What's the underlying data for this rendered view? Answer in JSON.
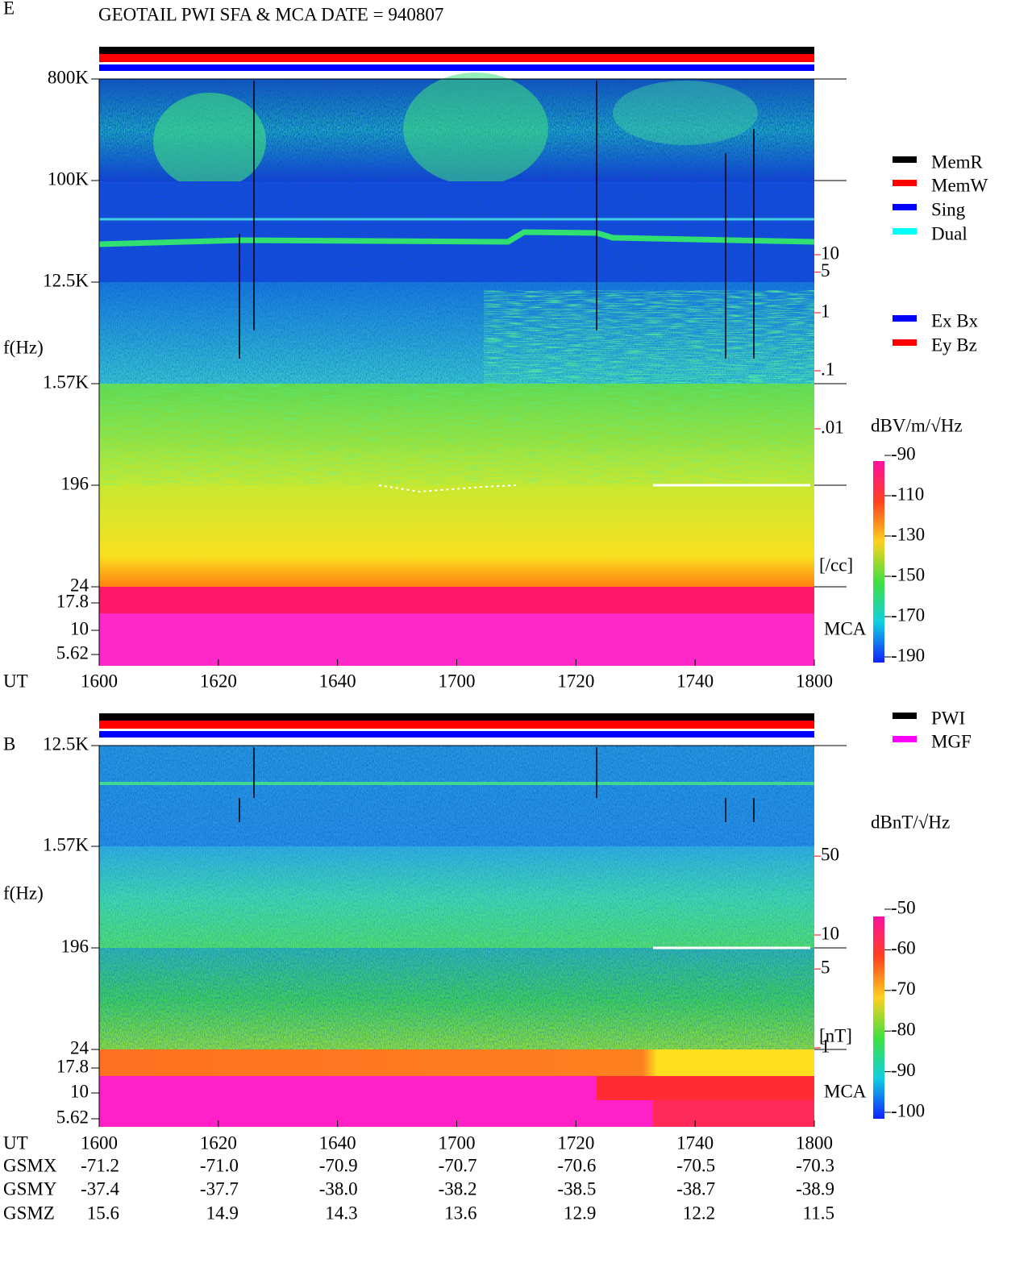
{
  "header": {
    "title": "GEOTAIL  PWI SFA & MCA   DATE = 940807"
  },
  "panels": [
    {
      "label": "E",
      "ylabel": "f(Hz)",
      "freq_ticks": [
        {
          "value": 800000,
          "label": "800K"
        },
        {
          "value": 100000,
          "label": "100K"
        },
        {
          "value": 12500,
          "label": "12.5K"
        },
        {
          "value": 1570,
          "label": "1.57K"
        },
        196,
        24,
        17.8,
        10,
        5.62
      ],
      "legend": [
        {
          "name": "MemR",
          "color": "#000000"
        },
        {
          "name": "MemW",
          "color": "#ff0000"
        },
        {
          "name": "Sing",
          "color": "#0000ff"
        },
        {
          "name": "Dual",
          "color": "#00ffff"
        }
      ],
      "legend2": [
        {
          "name": "Ex Bx",
          "color": "#0000ff"
        },
        {
          "name": "Ey Bz",
          "color": "#ff0000"
        }
      ],
      "scale": {
        "unit": "[/cc]",
        "ticks": [
          10,
          5,
          1,
          {
            "value": 0.1,
            "label": ".1"
          },
          {
            "value": 0.01,
            "label": ".01"
          }
        ]
      },
      "mca_label": "MCA",
      "colorbar": {
        "unit": "dBV/m/√Hz",
        "lim": [
          -190,
          -90
        ],
        "ticks": [
          -90,
          -110,
          -130,
          -150,
          -170,
          -190
        ]
      },
      "time_label": "UT",
      "times": [
        1600,
        1620,
        1640,
        1700,
        1720,
        1740,
        1800
      ]
    },
    {
      "label": "B",
      "ylabel": "f(Hz)",
      "freq_ticks": [
        {
          "value": 12500,
          "label": "12.5K"
        },
        {
          "value": 1570,
          "label": "1.57K"
        },
        196,
        24,
        17.8,
        10,
        5.62
      ],
      "legend": [
        {
          "name": "PWI",
          "color": "#000000"
        },
        {
          "name": "MGF",
          "color": "#ff00ff"
        }
      ],
      "scale": {
        "unit": "[nT]",
        "ticks": [
          50,
          10,
          5,
          1
        ]
      },
      "mca_label": "MCA",
      "colorbar": {
        "unit": "dBnT/√Hz",
        "lim": [
          -100,
          -50
        ],
        "ticks": [
          -50,
          -60,
          -70,
          -80,
          -90,
          -100
        ]
      },
      "time_label": "UT",
      "times": [
        1600,
        1620,
        1640,
        1700,
        1720,
        1740,
        1800
      ]
    }
  ],
  "orbit": {
    "rows": [
      {
        "name": "GSMX",
        "values": [
          "-71.2",
          "-71.0",
          "-70.9",
          "-70.7",
          "-70.6",
          "-70.5",
          "-70.3"
        ]
      },
      {
        "name": "GSMY",
        "values": [
          "-37.4",
          "-37.7",
          "-38.0",
          "-38.2",
          "-38.5",
          "-38.7",
          "-38.9"
        ]
      },
      {
        "name": "GSMZ",
        "values": [
          "15.6",
          "14.9",
          "14.3",
          "13.6",
          "12.9",
          "12.2",
          "11.5"
        ]
      }
    ]
  }
}
